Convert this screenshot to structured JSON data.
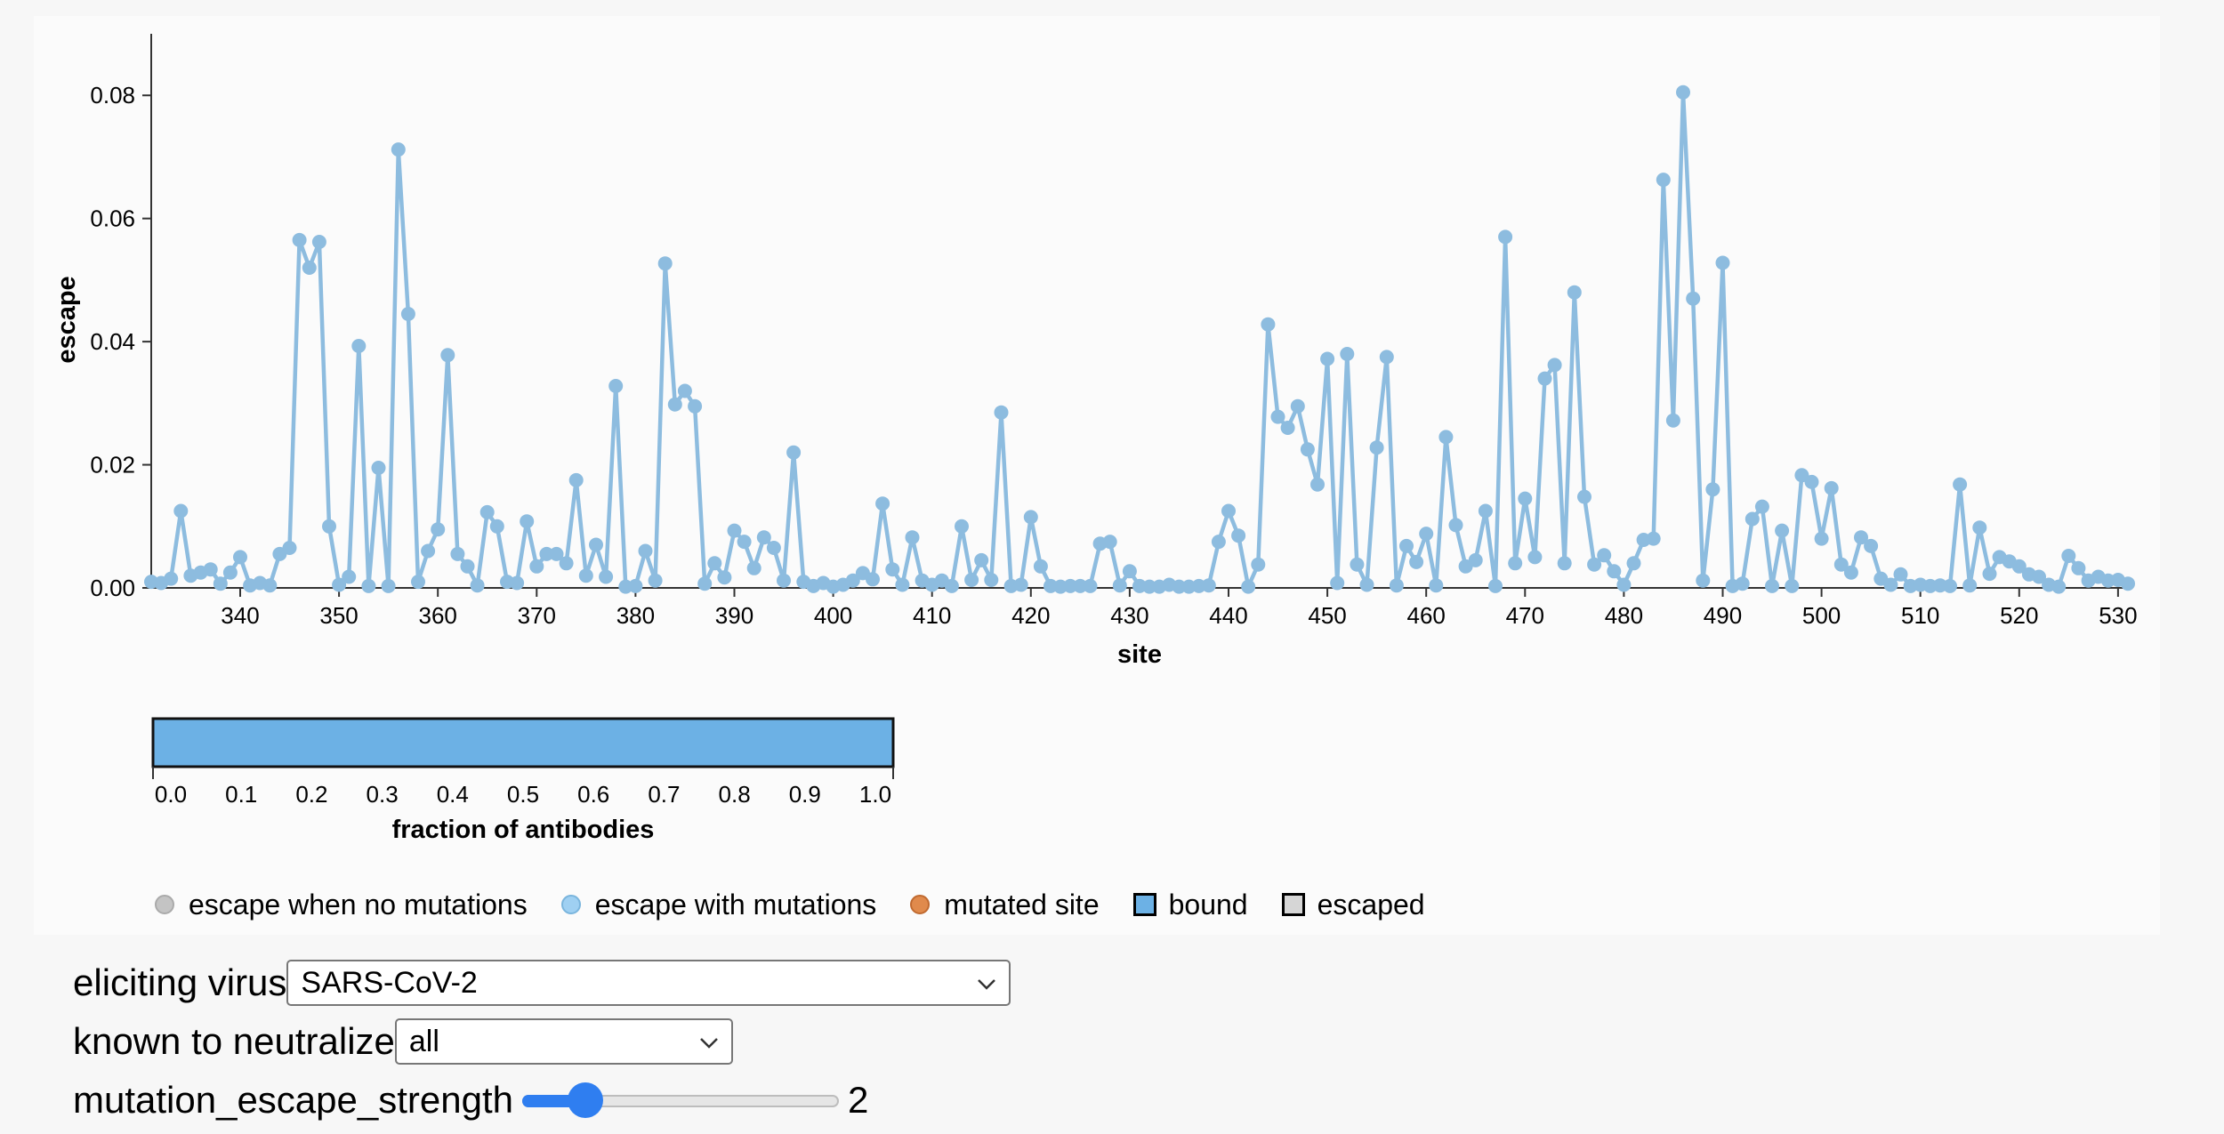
{
  "chart_data": {
    "type": "line",
    "xlabel": "site",
    "ylabel": "escape",
    "xlim": [
      331,
      531
    ],
    "ylim": [
      0,
      0.09
    ],
    "x_ticks": [
      340,
      350,
      360,
      370,
      380,
      390,
      400,
      410,
      420,
      430,
      440,
      450,
      460,
      470,
      480,
      490,
      500,
      510,
      520,
      530
    ],
    "y_ticks": [
      0,
      0.02,
      0.04,
      0.06,
      0.08
    ],
    "y_tick_labels": [
      "0.00",
      "0.02",
      "0.04",
      "0.06",
      "0.08"
    ],
    "series": [
      {
        "name": "escape with mutations",
        "color": "#8dbcdf",
        "x_start": 331,
        "values": [
          0.001,
          0.0008,
          0.0015,
          0.0125,
          0.002,
          0.0025,
          0.003,
          0.0007,
          0.0025,
          0.005,
          0.0004,
          0.0008,
          0.0004,
          0.0055,
          0.0065,
          0.0565,
          0.052,
          0.0562,
          0.01,
          0.0005,
          0.0018,
          0.0393,
          0.0003,
          0.0195,
          0.0003,
          0.0712,
          0.0445,
          0.001,
          0.006,
          0.0095,
          0.0378,
          0.0055,
          0.0035,
          0.0004,
          0.0123,
          0.01,
          0.001,
          0.0008,
          0.0108,
          0.0035,
          0.0055,
          0.0055,
          0.004,
          0.0175,
          0.002,
          0.007,
          0.0018,
          0.0328,
          0.0002,
          0.0003,
          0.006,
          0.0012,
          0.0527,
          0.0298,
          0.032,
          0.0295,
          0.0007,
          0.004,
          0.0017,
          0.0093,
          0.0075,
          0.0032,
          0.0082,
          0.0065,
          0.0012,
          0.022,
          0.001,
          0.0003,
          0.0008,
          0.0002,
          0.0005,
          0.0012,
          0.0024,
          0.0014,
          0.0137,
          0.003,
          0.0005,
          0.0082,
          0.0012,
          0.0005,
          0.0012,
          0.0003,
          0.01,
          0.0013,
          0.0045,
          0.0013,
          0.0285,
          0.0003,
          0.0005,
          0.0115,
          0.0035,
          0.0003,
          0.0002,
          0.0003,
          0.0003,
          0.0003,
          0.0072,
          0.0075,
          0.0004,
          0.0027,
          0.0003,
          0.0002,
          0.0002,
          0.0005,
          0.0002,
          0.0002,
          0.0003,
          0.0004,
          0.0075,
          0.0125,
          0.0085,
          0.0002,
          0.0038,
          0.0428,
          0.0278,
          0.026,
          0.0295,
          0.0225,
          0.0168,
          0.0372,
          0.0008,
          0.038,
          0.0038,
          0.0005,
          0.0228,
          0.0375,
          0.0004,
          0.0068,
          0.0042,
          0.0088,
          0.0004,
          0.0245,
          0.0102,
          0.0035,
          0.0045,
          0.0125,
          0.0003,
          0.057,
          0.004,
          0.0145,
          0.005,
          0.034,
          0.0362,
          0.004,
          0.048,
          0.0148,
          0.0038,
          0.0053,
          0.0027,
          0.0005,
          0.004,
          0.0078,
          0.008,
          0.0663,
          0.0272,
          0.0805,
          0.047,
          0.0012,
          0.016,
          0.0528,
          0.0003,
          0.0007,
          0.0112,
          0.0132,
          0.0003,
          0.0093,
          0.0003,
          0.0183,
          0.0172,
          0.008,
          0.0162,
          0.0038,
          0.0025,
          0.0082,
          0.0068,
          0.0015,
          0.0005,
          0.0022,
          0.0003,
          0.0005,
          0.0003,
          0.0004,
          0.0003,
          0.0168,
          0.0004,
          0.0098,
          0.0023,
          0.005,
          0.0043,
          0.0035,
          0.0022,
          0.0018,
          0.0005,
          0.0002,
          0.0052,
          0.0032,
          0.0012,
          0.0018,
          0.0012,
          0.0013,
          0.0007
        ]
      }
    ]
  },
  "colorbar": {
    "title": "fraction of antibodies",
    "color": "#6cb1e5",
    "range": [
      0,
      1
    ],
    "ticks": [
      "0.0",
      "0.1",
      "0.2",
      "0.3",
      "0.4",
      "0.5",
      "0.6",
      "0.7",
      "0.8",
      "0.9",
      "1.0"
    ]
  },
  "legend": {
    "items": [
      {
        "label": "escape when no mutations",
        "shape": "circle",
        "color": "#c4c4c4",
        "border": "#aaaaaa"
      },
      {
        "label": "escape with mutations",
        "shape": "circle",
        "color": "#9fd0f2",
        "border": "#7ab5dd"
      },
      {
        "label": "mutated site",
        "shape": "circle",
        "color": "#e08a4c",
        "border": "#c06a30"
      },
      {
        "label": "bound",
        "shape": "square",
        "color": "#6cb1e5"
      },
      {
        "label": "escaped",
        "shape": "square",
        "color": "#d6d6d6"
      }
    ]
  },
  "controls": {
    "eliciting_virus": {
      "label": "eliciting virus",
      "value": "SARS-CoV-2"
    },
    "known_to_neutralize": {
      "label": "known to neutralize",
      "value": "all"
    },
    "mutation_escape_strength": {
      "label": "mutation_escape_strength",
      "value": "2",
      "min": 0,
      "max": 10,
      "current": 2
    }
  }
}
